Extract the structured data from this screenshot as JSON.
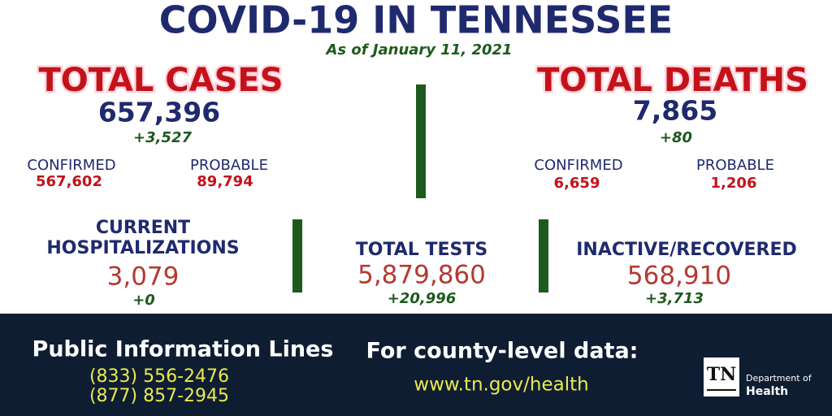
{
  "header": {
    "title": "COVID-19 IN TENNESSEE",
    "subtitle": "As of January 11, 2021"
  },
  "cases": {
    "label": "TOTAL CASES",
    "total": "657,396",
    "change": "+3,527",
    "confirmed_label": "CONFIRMED",
    "confirmed": "567,602",
    "probable_label": "PROBABLE",
    "probable": "89,794"
  },
  "deaths": {
    "label": "TOTAL DEATHS",
    "total": "7,865",
    "change": "+80",
    "confirmed_label": "CONFIRMED",
    "confirmed": "6,659",
    "probable_label": "PROBABLE",
    "probable": "1,206"
  },
  "hospitalizations": {
    "label_line1": "CURRENT",
    "label_line2": "HOSPITALIZATIONS",
    "total": "3,079",
    "change": "+0"
  },
  "tests": {
    "label": "TOTAL TESTS",
    "total": "5,879,860",
    "change": "+20,996"
  },
  "recovered": {
    "label": "INACTIVE/RECOVERED",
    "total": "568,910",
    "change": "+3,713"
  },
  "footer": {
    "info_title": "Public Information Lines",
    "phones": [
      "(833) 556-2476",
      "(877) 857-2945"
    ],
    "county_title": "For county-level data:",
    "url": "www.tn.gov/health",
    "logo": {
      "mark": "TN",
      "line1": "Department of",
      "line2": "Health"
    }
  }
}
